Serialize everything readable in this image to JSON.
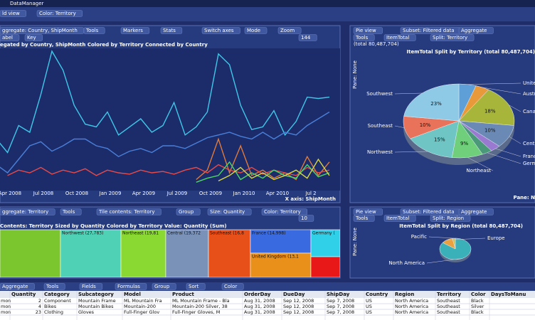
{
  "app_title": "DataManager",
  "view_bar": [
    "ld view",
    "Color: Territory"
  ],
  "line_panel": {
    "toolbar": [
      "ggregate: Country, ShipMonth",
      "Tools",
      "Markers",
      "Stats",
      "Switch axes",
      "Mode",
      "Zoom"
    ],
    "toolbar2": [
      "abel",
      "Key",
      "144"
    ],
    "title": "egated by Country, ShipMonth    Colored by Territory    Connected by Country",
    "x_labels": [
      "Apr 2008",
      "Jul 2008",
      "Oct 2008",
      "Jan 2009",
      "Apr 2009",
      "Jul 2009",
      "Oct 2009",
      "Jan 2010",
      "Apr 2010",
      "Jul 2"
    ],
    "x_axis_label": "X axis: ShipMonth",
    "series": [
      {
        "color": "#3fc8e8",
        "values": [
          35,
          25,
          45,
          40,
          68,
          100,
          86,
          60,
          46,
          44,
          55,
          38,
          44,
          50,
          40,
          45,
          62,
          38,
          44,
          55,
          98,
          90,
          60,
          42,
          44,
          56,
          38,
          48,
          66,
          65,
          66
        ]
      },
      {
        "color": "#4a7fd8",
        "values": [
          16,
          10,
          20,
          30,
          33,
          26,
          30,
          35,
          35,
          30,
          28,
          22,
          26,
          28,
          25,
          30,
          30,
          28,
          32,
          36,
          38,
          40,
          37,
          35,
          40,
          35,
          40,
          38,
          45,
          50,
          55
        ]
      },
      {
        "color": "#e07a3a",
        "values": [
          null,
          null,
          null,
          null,
          null,
          null,
          null,
          null,
          null,
          null,
          null,
          null,
          null,
          null,
          null,
          null,
          null,
          null,
          5,
          12,
          35,
          10,
          30,
          8,
          12,
          6,
          10,
          5,
          22,
          8,
          18
        ]
      },
      {
        "color": "#e84a4a",
        "values": [
          null,
          8,
          12,
          10,
          14,
          9,
          12,
          10,
          13,
          8,
          12,
          10,
          9,
          12,
          10,
          11,
          9,
          12,
          14,
          10,
          16,
          12,
          10,
          14,
          9,
          12,
          10,
          8,
          14,
          10,
          12
        ]
      },
      {
        "color": "#4ad860",
        "values": [
          null,
          null,
          null,
          null,
          null,
          null,
          null,
          null,
          null,
          null,
          null,
          null,
          null,
          null,
          null,
          null,
          null,
          null,
          3,
          6,
          8,
          18,
          5,
          10,
          6,
          12,
          8,
          6,
          16,
          7,
          10
        ]
      },
      {
        "color": "#d8d840",
        "values": [
          null,
          null,
          null,
          null,
          null,
          null,
          null,
          null,
          null,
          null,
          null,
          null,
          null,
          null,
          null,
          null,
          null,
          null,
          null,
          null,
          4,
          8,
          14,
          6,
          10,
          5,
          8,
          12,
          6,
          20,
          8
        ]
      }
    ]
  },
  "territory_pie": {
    "toolbar": [
      "Pie view",
      "Subset: Filtered data",
      "Aggregate"
    ],
    "toolbar2": [
      "Tools",
      "ItemTotal",
      "Split: Territory"
    ],
    "total": "(total 80,487,704)",
    "title": "ItemTotal    Split by Territory (total 80,487,704)",
    "pane": "Pane: None",
    "pane_corner": "Pane: N",
    "categories": [
      "United Kingdom",
      "Australia",
      "Canada",
      "Central",
      "France",
      "Germany",
      "Northeast",
      "Northwest",
      "Southeast",
      "Southwest"
    ],
    "values": [
      5,
      4,
      18,
      10,
      3,
      3,
      9,
      15,
      10,
      23
    ],
    "value_labels": [
      null,
      null,
      "18%",
      "10%",
      null,
      null,
      "9%",
      "15%",
      "10%",
      "23%"
    ],
    "colors": [
      "#5f9fd8",
      "#e89a3a",
      "#a7b53a",
      "#6a8ab5",
      "#9a7ad0",
      "#4a9a7a",
      "#6fcf7a",
      "#6fc4c4",
      "#e8735a",
      "#8ecae6"
    ]
  },
  "treemap_panel": {
    "toolbar": [
      "ggregate: Territory",
      "Tools",
      "Tile contents: Territory",
      "Group",
      "Size: Quantity",
      "Color: Territory"
    ],
    "toolbar2": [
      "10"
    ],
    "title": "Contents: Territory    Sized by Quantity    Colored by Territory    Value: Quantity (Sum)",
    "tiles": [
      {
        "label": "",
        "color": "#7bc62e"
      },
      {
        "label": "Northwest (27,783)",
        "color": "#4fd1b5"
      },
      {
        "label": "Northeast (19,81",
        "color": "#8ad832"
      },
      {
        "label": "Central (19,372",
        "color": "#7a92b8"
      },
      {
        "label": "Southeast (16,8",
        "color": "#e8501a"
      },
      {
        "label": "France (14,998)",
        "color": "#3a6ae0"
      },
      {
        "label": "United Kingdom (13,1",
        "color": "#e8901a"
      },
      {
        "label": "Germany (",
        "color": "#30d0e8"
      },
      {
        "label": "",
        "color": "#e81818"
      }
    ]
  },
  "region_pie": {
    "toolbar": [
      "Pie view",
      "Subset: Filtered data",
      "Aggregate"
    ],
    "toolbar2": [
      "Tools",
      "ItemTotal",
      "Split: Region"
    ],
    "title": "ItemTotal    Split by Region (total 80,487,704)",
    "pane": "Pane: None",
    "categories": [
      "North America",
      "Europe",
      "Pacific"
    ],
    "values": [
      85,
      12,
      3
    ],
    "colors": [
      "#3ab0b8",
      "#e8a040",
      "#c8c060"
    ]
  },
  "table": {
    "toolbar": [
      "Aggregate",
      "Tools",
      "Fields",
      "Formulas",
      "Group",
      "Sort",
      "Color"
    ],
    "columns": [
      "Quantity",
      "Category",
      "Subcategory",
      "Model",
      "Product",
      "OrderDay",
      "DueDay",
      "ShipDay",
      "Country",
      "Region",
      "Territory",
      "Color",
      "DaysToManu"
    ],
    "rows": [
      [
        "mon",
        "2",
        "Component",
        "Mountain Frame",
        "ML Mountain Fra",
        "ML Mountain Frame - Bla",
        "Aug 31, 2008",
        "Sep 12, 2008",
        "Sep 7, 2008",
        "US",
        "North America",
        "Southeast",
        "Black"
      ],
      [
        "mon",
        "4",
        "Bikes",
        "Mountain Bikes",
        "Mountain-200",
        "Mountain-200 Silver, 38",
        "Aug 31, 2008",
        "Sep 12, 2008",
        "Sep 7, 2008",
        "US",
        "North America",
        "Southeast",
        "Silver"
      ],
      [
        "mon",
        "23",
        "Clothing",
        "Gloves",
        "Full-Finger Glov",
        "Full-Finger Gloves, M",
        "Aug 31, 2008",
        "Sep 12, 2008",
        "Sep 7, 2008",
        "US",
        "North America",
        "Southeast",
        "Black"
      ]
    ]
  }
}
